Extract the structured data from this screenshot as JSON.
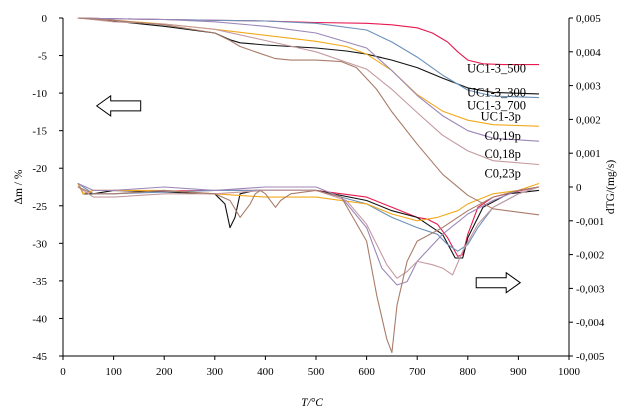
{
  "chart_data": {
    "type": "line",
    "xlabel": "T/°C",
    "ylabel_left": "Δm / %",
    "ylabel_right": "dTG/(mg/s)",
    "xlim": [
      0,
      1000
    ],
    "ylim_left": [
      -45,
      0
    ],
    "ylim_right": [
      -0.005,
      0.005
    ],
    "x_ticks": [
      "0",
      "100",
      "200",
      "300",
      "400",
      "500",
      "600",
      "700",
      "800",
      "900",
      "1000"
    ],
    "y_left_ticks": [
      "0",
      "-5",
      "-10",
      "-15",
      "-20",
      "-25",
      "-30",
      "-35",
      "-40",
      "-45"
    ],
    "y_right_ticks": [
      "0,005",
      "0,004",
      "0,003",
      "0,002",
      "0,001",
      "0",
      "-0,001",
      "-0,002",
      "-0,003",
      "-0,004",
      "-0,005"
    ],
    "grid": false,
    "arrows": [
      {
        "direction": "left",
        "axis": "left",
        "x": 110,
        "y": -11.7
      },
      {
        "direction": "right",
        "axis": "right",
        "x": 860,
        "y": -0.00283
      }
    ],
    "series": [
      {
        "name": "UC1-3_500",
        "color": "#e8194f",
        "tg_x": [
          30,
          100,
          200,
          300,
          400,
          500,
          600,
          650,
          700,
          730,
          760,
          780,
          800,
          830,
          870,
          940
        ],
        "tg_y": [
          0,
          -0.1,
          -0.2,
          -0.3,
          -0.4,
          -0.6,
          -0.7,
          -0.9,
          -1.3,
          -2.0,
          -3.2,
          -4.5,
          -5.6,
          -6.1,
          -6.2,
          -6.2
        ],
        "dtg_x": [
          30,
          40,
          60,
          100,
          200,
          300,
          400,
          500,
          600,
          650,
          700,
          720,
          740,
          760,
          780,
          790,
          800,
          820,
          850,
          900,
          940
        ],
        "dtg_y": [
          0.0001,
          -0.0002,
          -0.0001,
          -0.0001,
          -0.00012,
          -0.0001,
          -0.0001,
          -0.0001,
          -0.0003,
          -0.0006,
          -0.0009,
          -0.00095,
          -0.0011,
          -0.0015,
          -0.00205,
          -0.002,
          -0.0014,
          -0.0006,
          -0.0003,
          -0.00012,
          0
        ]
      },
      {
        "name": "UC1-3_300",
        "color": "#111111",
        "tg_x": [
          30,
          100,
          200,
          300,
          330,
          350,
          400,
          500,
          560,
          600,
          650,
          700,
          750,
          800,
          850,
          940
        ],
        "tg_y": [
          0,
          -0.4,
          -1.1,
          -2.0,
          -2.9,
          -3.3,
          -3.6,
          -4.0,
          -4.4,
          -4.8,
          -5.6,
          -6.6,
          -8.0,
          -9.3,
          -9.9,
          -10.1
        ],
        "dtg_x": [
          30,
          40,
          60,
          100,
          200,
          300,
          320,
          330,
          340,
          350,
          380,
          400,
          500,
          600,
          650,
          700,
          750,
          775,
          790,
          800,
          830,
          880,
          940
        ],
        "dtg_y": [
          0.0001,
          -0.0002,
          -0.0002,
          -0.0001,
          -0.00015,
          -0.0002,
          -0.0005,
          -0.0012,
          -0.0009,
          -0.0002,
          -0.0001,
          -0.0001,
          -0.0001,
          -0.0004,
          -0.0007,
          -0.0009,
          -0.0014,
          -0.0021,
          -0.0021,
          -0.0015,
          -0.0006,
          -0.0002,
          -0.0001
        ]
      },
      {
        "name": "UC1-3_700",
        "color": "#6b91b8",
        "tg_x": [
          30,
          100,
          200,
          300,
          400,
          500,
          600,
          650,
          700,
          750,
          800,
          850,
          940
        ],
        "tg_y": [
          0,
          -0.1,
          -0.2,
          -0.3,
          -0.4,
          -0.7,
          -1.6,
          -3.2,
          -5.2,
          -7.6,
          -9.6,
          -10.4,
          -10.6
        ],
        "dtg_x": [
          30,
          60,
          100,
          200,
          300,
          400,
          500,
          600,
          650,
          700,
          740,
          760,
          780,
          800,
          820,
          850,
          900,
          940
        ],
        "dtg_y": [
          0.0001,
          -0.0002,
          -0.0002,
          -0.00015,
          -0.0001,
          -0.0001,
          -0.0001,
          -0.0005,
          -0.0009,
          -0.0012,
          -0.0014,
          -0.0017,
          -0.0019,
          -0.0017,
          -0.0012,
          -0.0006,
          -0.0002,
          0
        ]
      },
      {
        "name": "UC1-3p",
        "color": "#f2a91c",
        "tg_x": [
          30,
          100,
          200,
          300,
          400,
          500,
          560,
          600,
          650,
          700,
          750,
          800,
          850,
          940
        ],
        "tg_y": [
          0,
          -0.3,
          -0.8,
          -1.5,
          -2.3,
          -3.1,
          -3.8,
          -4.8,
          -7.0,
          -10.2,
          -12.4,
          -13.6,
          -14.2,
          -14.4
        ],
        "dtg_x": [
          30,
          40,
          60,
          100,
          200,
          300,
          400,
          500,
          600,
          650,
          700,
          740,
          780,
          800,
          850,
          900,
          940
        ],
        "dtg_y": [
          0.0001,
          -0.0002,
          -0.0001,
          -0.0001,
          -0.0001,
          -0.0002,
          -0.0003,
          -0.0003,
          -0.0005,
          -0.0008,
          -0.001,
          -0.0009,
          -0.0007,
          -0.0005,
          -0.0002,
          -0.0001,
          0.0001
        ]
      },
      {
        "name": "C0,19p",
        "color": "#9c86b8",
        "tg_x": [
          30,
          100,
          200,
          300,
          400,
          500,
          600,
          650,
          700,
          750,
          800,
          850,
          940
        ],
        "tg_y": [
          0,
          -0.1,
          -0.2,
          -0.5,
          -1.1,
          -2.0,
          -4.0,
          -7.0,
          -10.3,
          -13.0,
          -15.0,
          -16.0,
          -16.4
        ],
        "dtg_x": [
          30,
          60,
          100,
          200,
          300,
          400,
          500,
          550,
          600,
          630,
          660,
          680,
          700,
          750,
          800,
          850,
          900,
          940
        ],
        "dtg_y": [
          0.0001,
          -0.0001,
          -0.0001,
          0,
          -0.0001,
          0,
          0,
          -0.0003,
          -0.0012,
          -0.0024,
          -0.0029,
          -0.0028,
          -0.0022,
          -0.0014,
          -0.0008,
          -0.0004,
          -0.0001,
          0
        ]
      },
      {
        "name": "C0,18p",
        "color": "#c59aa0",
        "tg_x": [
          30,
          100,
          200,
          300,
          400,
          500,
          600,
          650,
          700,
          750,
          800,
          850,
          940
        ],
        "tg_y": [
          0,
          -0.5,
          -0.8,
          -1.5,
          -3.0,
          -4.5,
          -6.8,
          -9.5,
          -12.6,
          -15.6,
          -17.7,
          -19.0,
          -19.5
        ],
        "dtg_x": [
          30,
          60,
          100,
          200,
          300,
          400,
          500,
          560,
          600,
          640,
          660,
          680,
          700,
          730,
          750,
          770,
          790,
          820,
          850,
          900,
          940
        ],
        "dtg_y": [
          0,
          -0.0003,
          -0.0003,
          -0.0002,
          -0.0002,
          -0.0001,
          -0.0001,
          -0.0004,
          -0.0011,
          -0.0023,
          -0.0027,
          -0.0025,
          -0.0022,
          -0.0023,
          -0.0024,
          -0.0026,
          -0.0019,
          -0.0011,
          -0.0006,
          -0.0002,
          0
        ]
      },
      {
        "name": "C0,23p",
        "color": "#a97c6a",
        "tg_x": [
          30,
          100,
          200,
          300,
          330,
          350,
          380,
          420,
          450,
          500,
          550,
          580,
          620,
          650,
          700,
          750,
          800,
          850,
          940
        ],
        "tg_y": [
          0,
          -0.3,
          -0.9,
          -2.0,
          -3.0,
          -3.8,
          -4.5,
          -5.4,
          -5.6,
          -5.6,
          -5.8,
          -6.6,
          -9.5,
          -12.5,
          -16.8,
          -20.8,
          -23.6,
          -25.4,
          -26.2
        ],
        "dtg_x": [
          30,
          60,
          100,
          200,
          300,
          330,
          350,
          370,
          380,
          390,
          400,
          420,
          430,
          450,
          500,
          550,
          600,
          620,
          640,
          650,
          660,
          680,
          700,
          750,
          800,
          850,
          900,
          940
        ],
        "dtg_y": [
          0,
          -0.0002,
          -0.0002,
          -0.0001,
          -0.0002,
          -0.0004,
          -0.0009,
          -0.0005,
          -0.0002,
          -0.0001,
          -0.0002,
          -0.0006,
          -0.0004,
          -0.0002,
          -0.0001,
          -0.0003,
          -0.0016,
          -0.0032,
          -0.0045,
          -0.0049,
          -0.0035,
          -0.0022,
          -0.0016,
          -0.0012,
          -0.0007,
          -0.0003,
          -0.0001,
          0
        ]
      }
    ]
  }
}
